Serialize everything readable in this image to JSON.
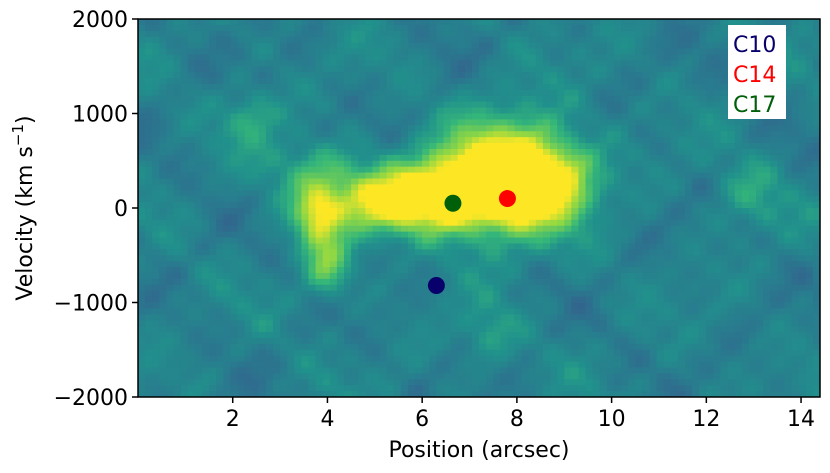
{
  "chart_data": {
    "type": "heatmap",
    "title": "",
    "xlabel": "Position (arcsec)",
    "ylabel_main": "Velocity (km s",
    "ylabel_sup": "−1",
    "ylabel_close": ")",
    "xlim": [
      0.0,
      14.4
    ],
    "ylim": [
      -2000,
      2000
    ],
    "xticks": [
      2,
      4,
      6,
      8,
      10,
      12,
      14
    ],
    "xtick_labels": [
      "2",
      "4",
      "6",
      "8",
      "10",
      "12",
      "14"
    ],
    "yticks": [
      -2000,
      -1000,
      0,
      1000,
      2000
    ],
    "ytick_labels": [
      "−2000",
      "−1000",
      "0",
      "1000",
      "2000"
    ],
    "colormap": "viridis",
    "grid": false,
    "legend_placement": "top-right",
    "emission_features": [
      {
        "x": 7.9,
        "y": 350,
        "sx": 0.9,
        "sy": 430,
        "amp": 1.0
      },
      {
        "x": 6.6,
        "y": 150,
        "sx": 1.1,
        "sy": 280,
        "amp": 0.9
      },
      {
        "x": 5.0,
        "y": 50,
        "sx": 1.0,
        "sy": 230,
        "amp": 0.55
      },
      {
        "x": 3.8,
        "y": -80,
        "sx": 0.35,
        "sy": 260,
        "amp": 0.55
      },
      {
        "x": 4.0,
        "y": -650,
        "sx": 0.35,
        "sy": 220,
        "amp": 0.45
      },
      {
        "x": 3.6,
        "y": 450,
        "sx": 0.7,
        "sy": 200,
        "amp": 0.28
      },
      {
        "x": 8.9,
        "y": 300,
        "sx": 0.6,
        "sy": 280,
        "amp": 0.45
      },
      {
        "x": 2.4,
        "y": 950,
        "sx": 0.4,
        "sy": 200,
        "amp": 0.3
      },
      {
        "x": 7.4,
        "y": -1350,
        "sx": 0.4,
        "sy": 220,
        "amp": 0.25
      },
      {
        "x": 12.9,
        "y": 150,
        "sx": 0.5,
        "sy": 260,
        "amp": 0.25
      }
    ],
    "series": [
      {
        "name": "C10",
        "color": "#08006b",
        "x": 6.3,
        "y": -820
      },
      {
        "name": "C14",
        "color": "#ff0000",
        "x": 7.8,
        "y": 100
      },
      {
        "name": "C17",
        "color": "#00600a",
        "x": 6.65,
        "y": 50
      }
    ]
  }
}
